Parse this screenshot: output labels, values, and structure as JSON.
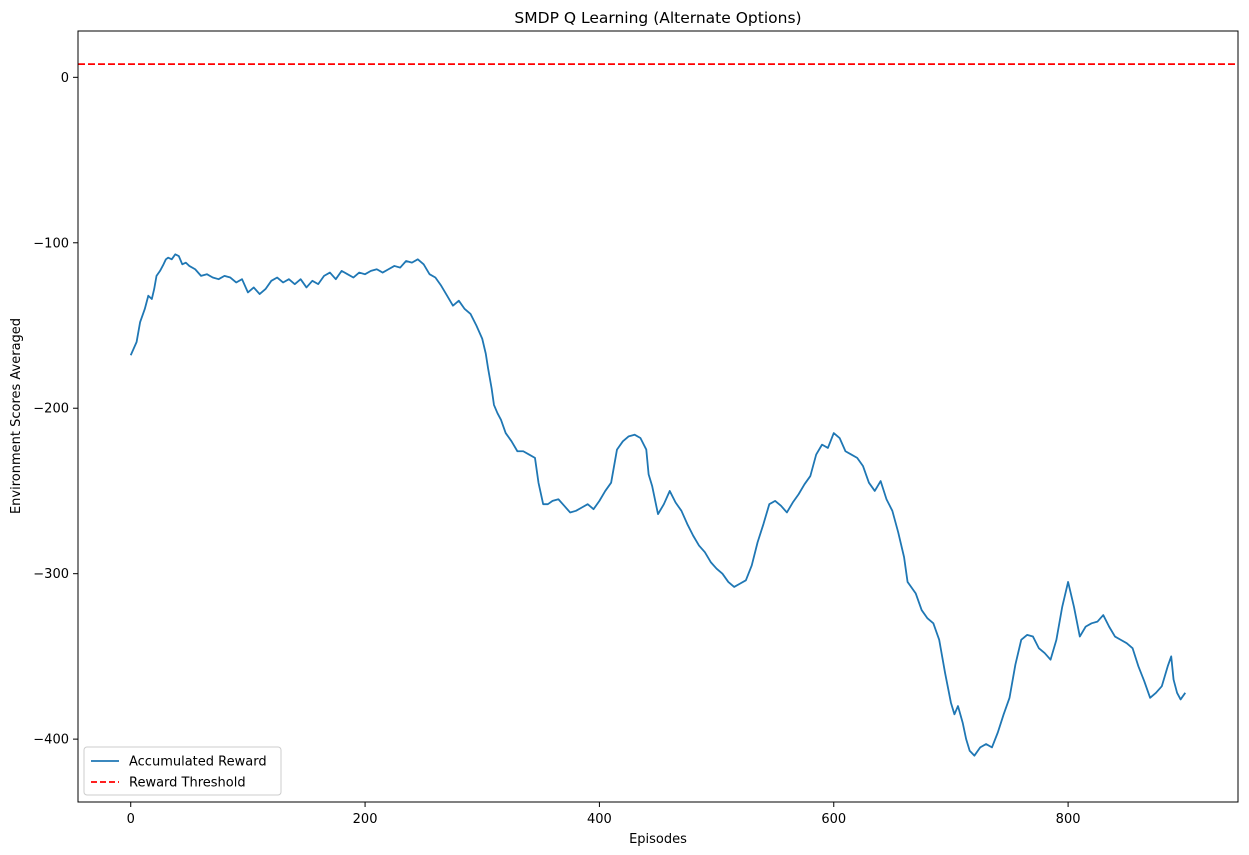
{
  "chart_data": {
    "type": "line",
    "title": "SMDP Q Learning (Alternate Options)",
    "xlabel": "Episodes",
    "ylabel": "Environment Scores Averaged",
    "xlim": [
      -45,
      945
    ],
    "ylim": [
      -438,
      28
    ],
    "xticks": [
      0,
      200,
      400,
      600,
      800
    ],
    "yticks": [
      0,
      -100,
      -200,
      -300,
      -400
    ],
    "grid": false,
    "legend_position": "lower-left",
    "series": [
      {
        "name": "Accumulated Reward",
        "color": "#1f77b4",
        "style": "solid",
        "points": [
          [
            0,
            -168
          ],
          [
            5,
            -160
          ],
          [
            8,
            -148
          ],
          [
            12,
            -140
          ],
          [
            15,
            -132
          ],
          [
            18,
            -134
          ],
          [
            20,
            -128
          ],
          [
            22,
            -120
          ],
          [
            25,
            -117
          ],
          [
            28,
            -113
          ],
          [
            30,
            -110
          ],
          [
            32,
            -109
          ],
          [
            35,
            -110
          ],
          [
            38,
            -107
          ],
          [
            41,
            -108
          ],
          [
            44,
            -113
          ],
          [
            47,
            -112
          ],
          [
            50,
            -114
          ],
          [
            55,
            -116
          ],
          [
            60,
            -120
          ],
          [
            65,
            -119
          ],
          [
            70,
            -121
          ],
          [
            75,
            -122
          ],
          [
            80,
            -120
          ],
          [
            85,
            -121
          ],
          [
            90,
            -124
          ],
          [
            95,
            -122
          ],
          [
            100,
            -130
          ],
          [
            105,
            -127
          ],
          [
            110,
            -131
          ],
          [
            115,
            -128
          ],
          [
            120,
            -123
          ],
          [
            125,
            -121
          ],
          [
            130,
            -124
          ],
          [
            135,
            -122
          ],
          [
            140,
            -125
          ],
          [
            145,
            -122
          ],
          [
            150,
            -127
          ],
          [
            155,
            -123
          ],
          [
            160,
            -125
          ],
          [
            165,
            -120
          ],
          [
            170,
            -118
          ],
          [
            175,
            -122
          ],
          [
            180,
            -117
          ],
          [
            185,
            -119
          ],
          [
            190,
            -121
          ],
          [
            195,
            -118
          ],
          [
            200,
            -119
          ],
          [
            205,
            -117
          ],
          [
            210,
            -116
          ],
          [
            215,
            -118
          ],
          [
            220,
            -116
          ],
          [
            225,
            -114
          ],
          [
            230,
            -115
          ],
          [
            235,
            -111
          ],
          [
            240,
            -112
          ],
          [
            245,
            -110
          ],
          [
            250,
            -113
          ],
          [
            255,
            -119
          ],
          [
            260,
            -121
          ],
          [
            265,
            -126
          ],
          [
            270,
            -132
          ],
          [
            275,
            -138
          ],
          [
            280,
            -135
          ],
          [
            285,
            -140
          ],
          [
            290,
            -143
          ],
          [
            295,
            -150
          ],
          [
            300,
            -158
          ],
          [
            303,
            -167
          ],
          [
            305,
            -176
          ],
          [
            308,
            -188
          ],
          [
            310,
            -198
          ],
          [
            313,
            -203
          ],
          [
            316,
            -207
          ],
          [
            320,
            -215
          ],
          [
            325,
            -220
          ],
          [
            330,
            -226
          ],
          [
            335,
            -226
          ],
          [
            340,
            -228
          ],
          [
            345,
            -230
          ],
          [
            348,
            -245
          ],
          [
            352,
            -258
          ],
          [
            356,
            -258
          ],
          [
            360,
            -256
          ],
          [
            365,
            -255
          ],
          [
            370,
            -259
          ],
          [
            375,
            -263
          ],
          [
            380,
            -262
          ],
          [
            385,
            -260
          ],
          [
            390,
            -258
          ],
          [
            395,
            -261
          ],
          [
            400,
            -256
          ],
          [
            405,
            -250
          ],
          [
            410,
            -245
          ],
          [
            415,
            -225
          ],
          [
            420,
            -220
          ],
          [
            425,
            -217
          ],
          [
            430,
            -216
          ],
          [
            435,
            -218
          ],
          [
            440,
            -225
          ],
          [
            442,
            -240
          ],
          [
            445,
            -247
          ],
          [
            450,
            -264
          ],
          [
            455,
            -258
          ],
          [
            460,
            -250
          ],
          [
            465,
            -257
          ],
          [
            470,
            -262
          ],
          [
            475,
            -270
          ],
          [
            480,
            -277
          ],
          [
            485,
            -283
          ],
          [
            490,
            -287
          ],
          [
            495,
            -293
          ],
          [
            500,
            -297
          ],
          [
            505,
            -300
          ],
          [
            510,
            -305
          ],
          [
            515,
            -308
          ],
          [
            520,
            -306
          ],
          [
            525,
            -304
          ],
          [
            530,
            -295
          ],
          [
            535,
            -281
          ],
          [
            540,
            -270
          ],
          [
            545,
            -258
          ],
          [
            550,
            -256
          ],
          [
            555,
            -259
          ],
          [
            560,
            -263
          ],
          [
            565,
            -257
          ],
          [
            570,
            -252
          ],
          [
            575,
            -246
          ],
          [
            580,
            -241
          ],
          [
            585,
            -228
          ],
          [
            590,
            -222
          ],
          [
            595,
            -224
          ],
          [
            600,
            -215
          ],
          [
            605,
            -218
          ],
          [
            610,
            -226
          ],
          [
            615,
            -228
          ],
          [
            620,
            -230
          ],
          [
            625,
            -235
          ],
          [
            630,
            -245
          ],
          [
            635,
            -250
          ],
          [
            640,
            -244
          ],
          [
            645,
            -255
          ],
          [
            650,
            -262
          ],
          [
            655,
            -275
          ],
          [
            660,
            -290
          ],
          [
            663,
            -305
          ],
          [
            666,
            -308
          ],
          [
            670,
            -312
          ],
          [
            675,
            -322
          ],
          [
            680,
            -327
          ],
          [
            685,
            -330
          ],
          [
            690,
            -340
          ],
          [
            695,
            -360
          ],
          [
            700,
            -378
          ],
          [
            703,
            -385
          ],
          [
            706,
            -380
          ],
          [
            710,
            -390
          ],
          [
            713,
            -400
          ],
          [
            716,
            -407
          ],
          [
            720,
            -410
          ],
          [
            725,
            -405
          ],
          [
            730,
            -403
          ],
          [
            735,
            -405
          ],
          [
            740,
            -396
          ],
          [
            745,
            -385
          ],
          [
            750,
            -375
          ],
          [
            755,
            -355
          ],
          [
            760,
            -340
          ],
          [
            765,
            -337
          ],
          [
            770,
            -338
          ],
          [
            775,
            -345
          ],
          [
            780,
            -348
          ],
          [
            785,
            -352
          ],
          [
            790,
            -340
          ],
          [
            795,
            -320
          ],
          [
            800,
            -305
          ],
          [
            805,
            -320
          ],
          [
            810,
            -338
          ],
          [
            815,
            -332
          ],
          [
            820,
            -330
          ],
          [
            825,
            -329
          ],
          [
            830,
            -325
          ],
          [
            835,
            -332
          ],
          [
            840,
            -338
          ],
          [
            845,
            -340
          ],
          [
            850,
            -342
          ],
          [
            855,
            -345
          ],
          [
            860,
            -356
          ],
          [
            865,
            -365
          ],
          [
            870,
            -375
          ],
          [
            875,
            -372
          ],
          [
            880,
            -368
          ],
          [
            885,
            -356
          ],
          [
            888,
            -350
          ],
          [
            890,
            -364
          ],
          [
            893,
            -372
          ],
          [
            896,
            -376
          ],
          [
            900,
            -372
          ]
        ]
      },
      {
        "name": "Reward Threshold",
        "color": "#ff0000",
        "style": "dashed",
        "y_constant": 8
      }
    ]
  }
}
